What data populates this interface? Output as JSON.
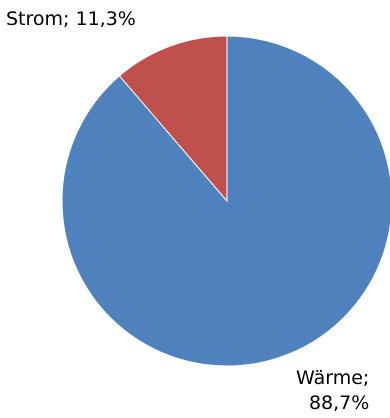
{
  "chart_data": {
    "type": "pie",
    "title": "",
    "slices": [
      {
        "label": "Wärme",
        "value": 88.7,
        "label_text_line1": "Wärme;",
        "label_text_line2": "88,7%",
        "color": "#4f81bd"
      },
      {
        "label": "Strom",
        "value": 11.3,
        "label_text": "Strom; 11,3%",
        "color": "#c0504d"
      }
    ],
    "legend": "none"
  }
}
